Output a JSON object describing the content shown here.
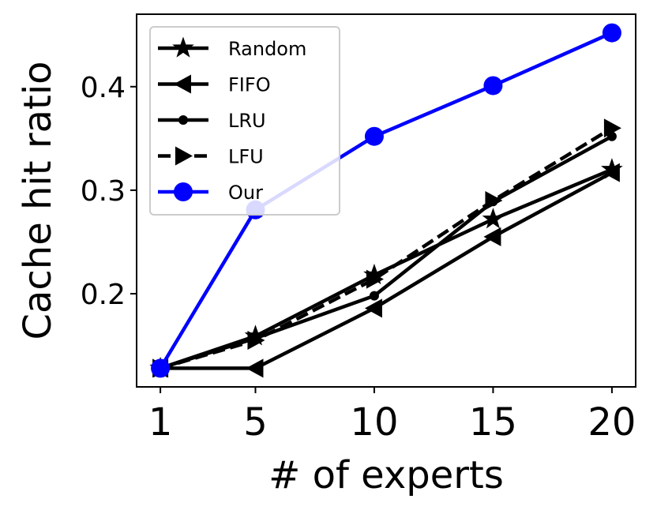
{
  "chart_data": {
    "type": "line",
    "title": "",
    "xlabel": "# of experts",
    "ylabel": "Cache hit ratio",
    "x": [
      1,
      5,
      10,
      15,
      20
    ],
    "x_ticks": [
      "1",
      "5",
      "10",
      "15",
      "20"
    ],
    "y_ticks": [
      "0.2",
      "0.3",
      "0.4"
    ],
    "xlim": [
      0,
      21
    ],
    "ylim": [
      0.11,
      0.47
    ],
    "grid": false,
    "legend_position": "top-left",
    "series": [
      {
        "name": "Random",
        "values": [
          0.128,
          0.159,
          0.218,
          0.272,
          0.32
        ],
        "color": "#000000",
        "marker": "star",
        "dashed": false
      },
      {
        "name": "FIFO",
        "values": [
          0.128,
          0.128,
          0.186,
          0.255,
          0.317
        ],
        "color": "#000000",
        "marker": "triangle-left",
        "dashed": false
      },
      {
        "name": "LRU",
        "values": [
          0.128,
          0.157,
          0.198,
          0.289,
          0.352
        ],
        "color": "#000000",
        "marker": "dot",
        "dashed": false
      },
      {
        "name": "LFU",
        "values": [
          0.128,
          0.155,
          0.214,
          0.29,
          0.36
        ],
        "color": "#000000",
        "marker": "triangle-right",
        "dashed": true
      },
      {
        "name": "Our",
        "values": [
          0.128,
          0.281,
          0.352,
          0.401,
          0.452
        ],
        "color": "#0000ff",
        "marker": "circle",
        "dashed": false
      }
    ]
  }
}
